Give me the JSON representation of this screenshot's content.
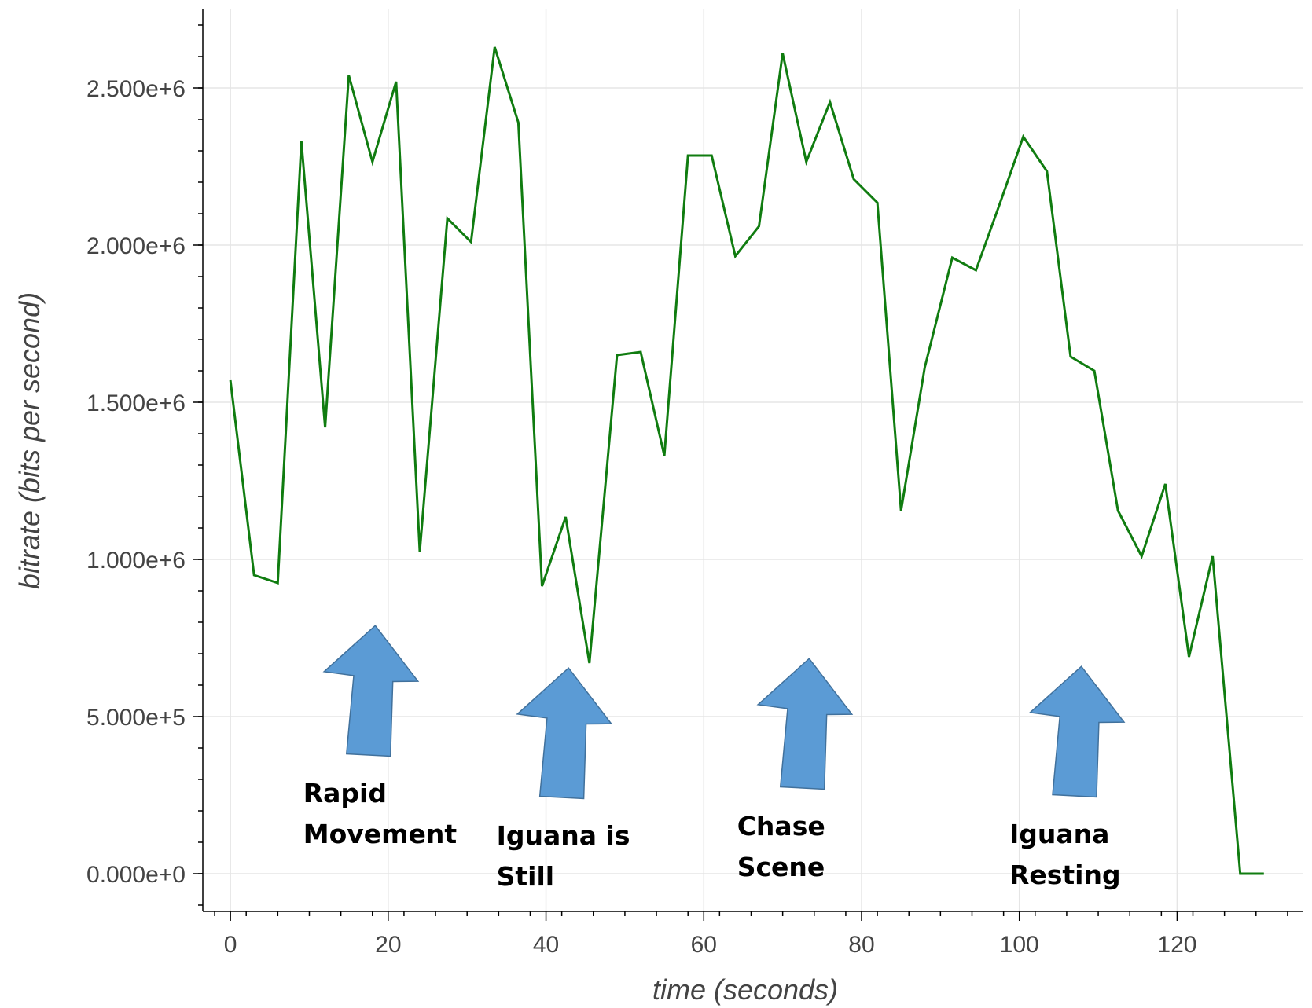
{
  "chart_data": {
    "type": "line",
    "xlabel": "time (seconds)",
    "ylabel": "bitrate (bits per second)",
    "xlim": [
      -3.5,
      136
    ],
    "ylim": [
      -120000,
      2750000
    ],
    "x_ticks": [
      0,
      20,
      40,
      60,
      80,
      100,
      120
    ],
    "x_tick_labels": [
      "0",
      "20",
      "40",
      "60",
      "80",
      "100",
      "120"
    ],
    "y_ticks": [
      0,
      500000,
      1000000,
      1500000,
      2000000,
      2500000
    ],
    "y_tick_labels": [
      "0.000e+0",
      "5.000e+5",
      "1.000e+6",
      "1.500e+6",
      "2.000e+6",
      "2.500e+6"
    ],
    "grid": true,
    "colors": {
      "series": "#107c10",
      "arrow": "#5b9bd5"
    },
    "series": [
      {
        "x": [
          0,
          3,
          6,
          9,
          12,
          15,
          18,
          21,
          24,
          27.5,
          30.5,
          33.5,
          36.5,
          39.5,
          42.5,
          45.5,
          49,
          52,
          55,
          58,
          61,
          64,
          67,
          70,
          73,
          76,
          79,
          82,
          85,
          88,
          91.5,
          94.5,
          97.5,
          100.5,
          103.5,
          106.5,
          109.5,
          112.5,
          115.5,
          118.5,
          121.5,
          124.5,
          128,
          131
        ],
        "y": [
          1570000,
          950000,
          925000,
          2330000,
          1420000,
          2540000,
          2265000,
          2520000,
          1025000,
          2085000,
          2010000,
          2630000,
          2390000,
          915000,
          1135000,
          670000,
          1650000,
          1660000,
          1330000,
          2285000,
          2285000,
          1965000,
          2060000,
          2610000,
          2265000,
          2455000,
          2210000,
          2135000,
          1155000,
          1610000,
          1960000,
          1920000,
          2130000,
          2345000,
          2235000,
          1645000,
          1600000,
          1155000,
          1010000,
          1240000,
          690000,
          1010000,
          0,
          0
        ]
      }
    ],
    "annotations": [
      {
        "lines": [
          "Rapid",
          "Movement"
        ],
        "arrow_x": 17.5,
        "arrow_tip_y": 790000
      },
      {
        "lines": [
          "Iguana is",
          "Still"
        ],
        "arrow_x": 42,
        "arrow_tip_y": 655000
      },
      {
        "lines": [
          "Chase",
          "Scene"
        ],
        "arrow_x": 72.5,
        "arrow_tip_y": 685000
      },
      {
        "lines": [
          "Iguana",
          "Resting"
        ],
        "arrow_x": 107,
        "arrow_tip_y": 660000
      }
    ]
  }
}
